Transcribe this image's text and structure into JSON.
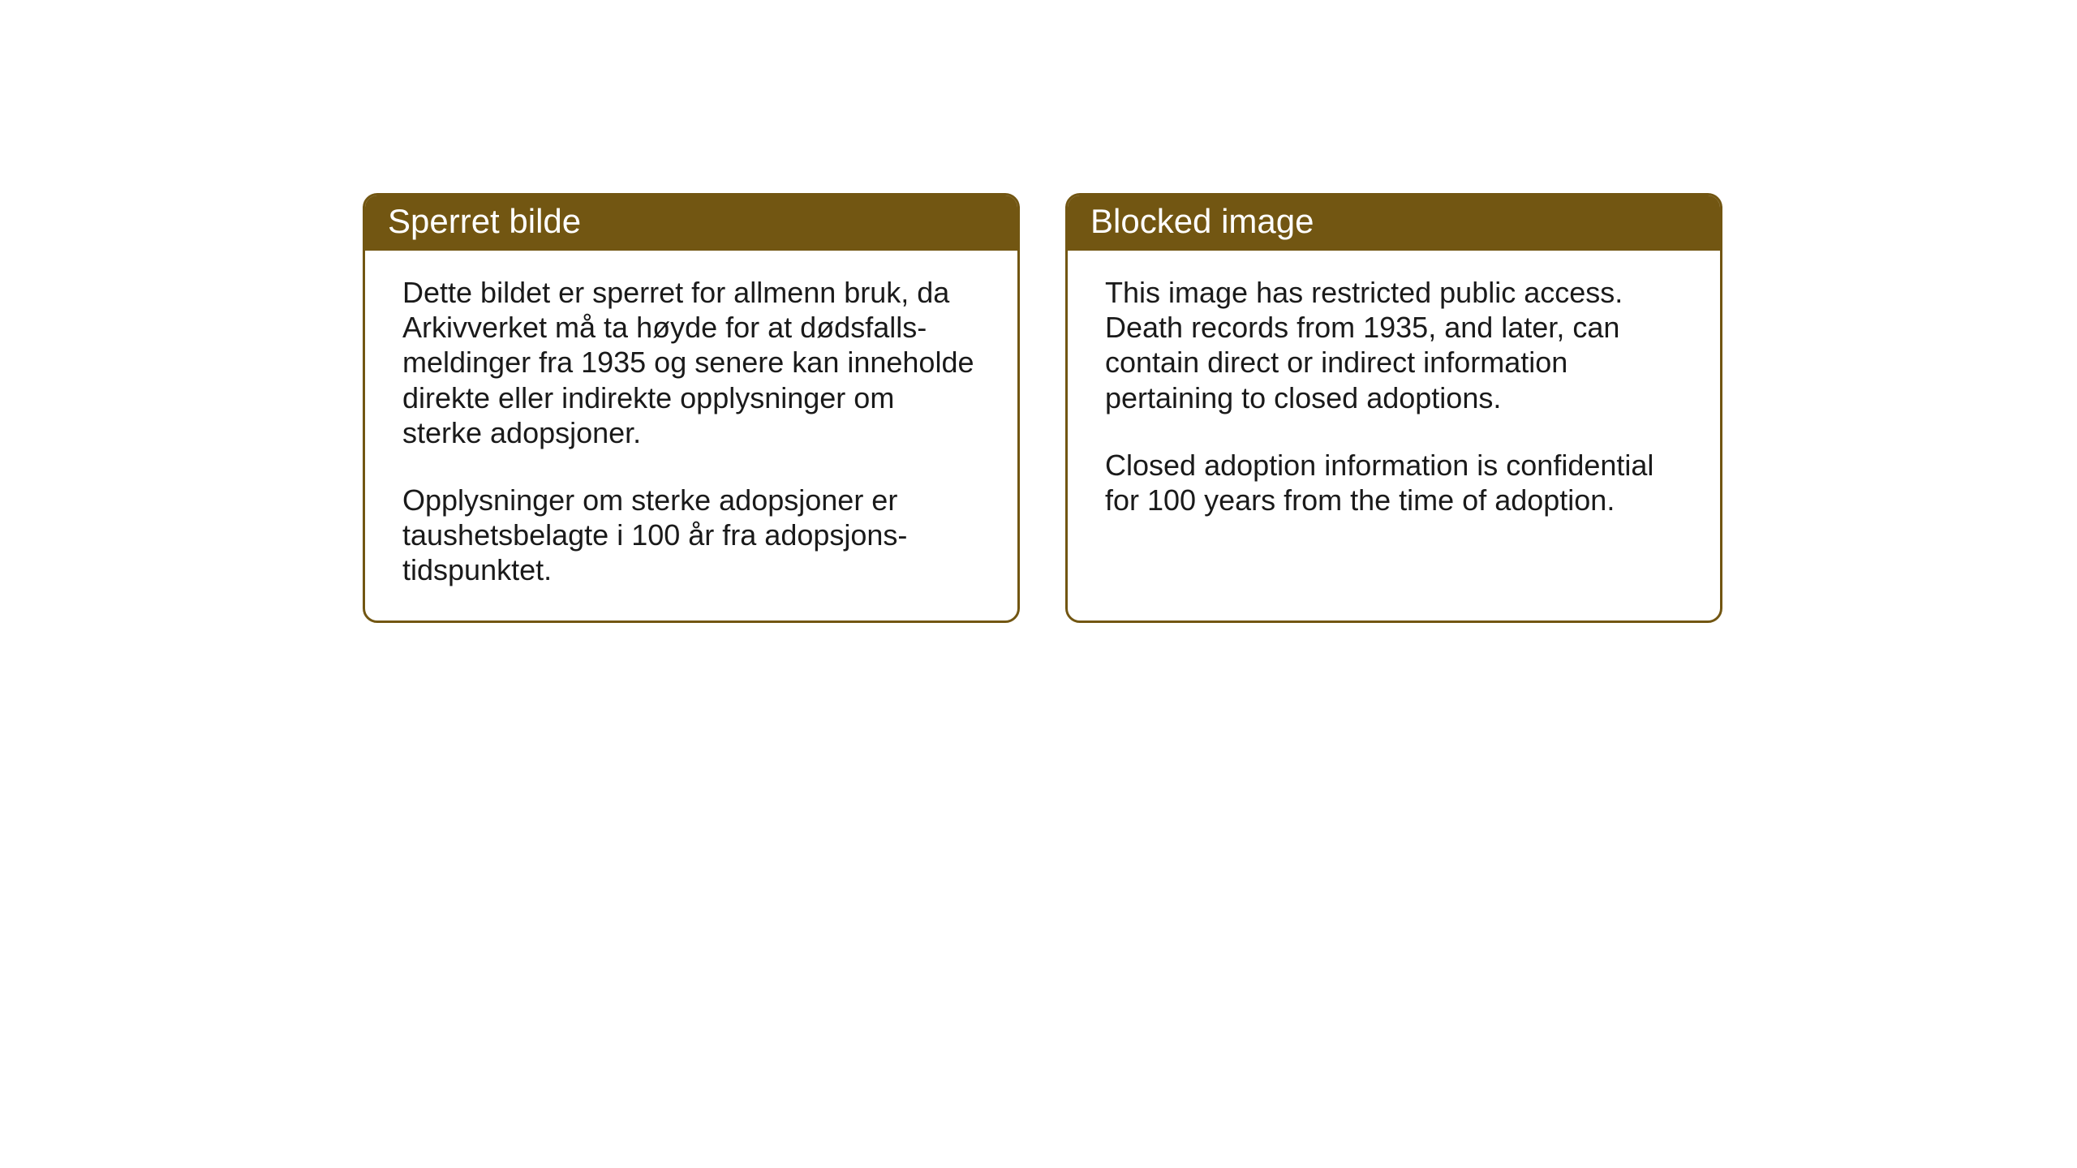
{
  "cards": {
    "left": {
      "title": "Sperret bilde",
      "paragraph1": "Dette bildet er sperret for allmenn bruk, da Arkivverket må ta høyde for at dødsfalls-meldinger fra 1935 og senere kan inneholde direkte eller indirekte opplysninger om sterke adopsjoner.",
      "paragraph2": "Opplysninger om sterke adopsjoner er taushetsbelagte i 100 år fra adopsjons-tidspunktet."
    },
    "right": {
      "title": "Blocked image",
      "paragraph1": "This image has restricted public access. Death records from 1935, and later, can contain direct or indirect information pertaining to closed adoptions.",
      "paragraph2": "Closed adoption information is confidential for 100 years from the time of adoption."
    }
  },
  "styling": {
    "header_bg_color": "#725612",
    "header_text_color": "#ffffff",
    "border_color": "#725612",
    "body_bg_color": "#ffffff",
    "body_text_color": "#1a1a1a",
    "page_bg_color": "#ffffff",
    "header_fontsize": 42,
    "body_fontsize": 36,
    "border_radius": 18,
    "border_width": 3
  }
}
